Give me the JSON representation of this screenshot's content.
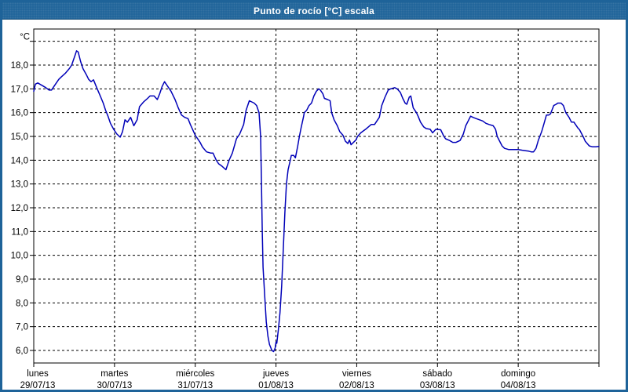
{
  "window": {
    "title": "Punto de rocío [°C] escala"
  },
  "chart": {
    "unit_label": "°C",
    "y_tick_labels": [
      "6,0",
      "7,0",
      "8,0",
      "9,0",
      "10,0",
      "11,0",
      "12,0",
      "13,0",
      "14,0",
      "15,0",
      "16,0",
      "17,0",
      "18,0"
    ],
    "x_labels": [
      {
        "day": "lunes",
        "date": "29/07/13"
      },
      {
        "day": "martes",
        "date": "30/07/13"
      },
      {
        "day": "miércoles",
        "date": "31/07/13"
      },
      {
        "day": "jueves",
        "date": "01/08/13"
      },
      {
        "day": "viernes",
        "date": "02/08/13"
      },
      {
        "day": "sábado",
        "date": "03/08/13"
      },
      {
        "day": "domingo",
        "date": "04/08/13"
      }
    ],
    "colors": {
      "frame_blue": "#1e6399",
      "frame_edge": "#123f63",
      "title_text": "#ffffff",
      "line": "#0000b8",
      "grid": "#000000",
      "plot_background": "#ffffff"
    }
  },
  "chart_data": {
    "type": "line",
    "title": "Punto de rocío [°C] escala",
    "ylabel": "°C",
    "xlabel": "",
    "grid": true,
    "legend": false,
    "ylim": [
      5.5,
      19.5
    ],
    "y_ticks": [
      6,
      7,
      8,
      9,
      10,
      11,
      12,
      13,
      14,
      15,
      16,
      17,
      18
    ],
    "y_grid_max": 19,
    "x_days": 7,
    "x_categories": [
      "lunes 29/07/13",
      "martes 30/07/13",
      "miércoles 31/07/13",
      "jueves 01/08/13",
      "viernes 02/08/13",
      "sábado 03/08/13",
      "domingo 04/08/13"
    ],
    "series": [
      {
        "name": "Punto de rocío [°C]",
        "color": "#0000b8",
        "x_unit": "days_from_monday_start",
        "points": [
          [
            0.0,
            16.9
          ],
          [
            0.02,
            17.2
          ],
          [
            0.05,
            17.25
          ],
          [
            0.1,
            17.15
          ],
          [
            0.15,
            17.05
          ],
          [
            0.19,
            16.95
          ],
          [
            0.22,
            16.95
          ],
          [
            0.26,
            17.15
          ],
          [
            0.31,
            17.4
          ],
          [
            0.34,
            17.5
          ],
          [
            0.39,
            17.65
          ],
          [
            0.44,
            17.85
          ],
          [
            0.47,
            18.0
          ],
          [
            0.51,
            18.4
          ],
          [
            0.53,
            18.6
          ],
          [
            0.55,
            18.55
          ],
          [
            0.58,
            18.15
          ],
          [
            0.61,
            17.85
          ],
          [
            0.65,
            17.6
          ],
          [
            0.68,
            17.4
          ],
          [
            0.71,
            17.3
          ],
          [
            0.74,
            17.38
          ],
          [
            0.78,
            17.05
          ],
          [
            0.83,
            16.65
          ],
          [
            0.86,
            16.4
          ],
          [
            0.89,
            16.1
          ],
          [
            0.92,
            15.85
          ],
          [
            0.95,
            15.55
          ],
          [
            0.99,
            15.3
          ],
          [
            1.03,
            15.1
          ],
          [
            1.07,
            14.97
          ],
          [
            1.1,
            15.2
          ],
          [
            1.13,
            15.7
          ],
          [
            1.16,
            15.6
          ],
          [
            1.2,
            15.8
          ],
          [
            1.24,
            15.45
          ],
          [
            1.28,
            15.7
          ],
          [
            1.31,
            16.25
          ],
          [
            1.36,
            16.45
          ],
          [
            1.41,
            16.6
          ],
          [
            1.44,
            16.7
          ],
          [
            1.49,
            16.7
          ],
          [
            1.53,
            16.55
          ],
          [
            1.56,
            16.8
          ],
          [
            1.59,
            17.1
          ],
          [
            1.62,
            17.3
          ],
          [
            1.65,
            17.15
          ],
          [
            1.7,
            16.9
          ],
          [
            1.75,
            16.55
          ],
          [
            1.79,
            16.2
          ],
          [
            1.83,
            15.9
          ],
          [
            1.87,
            15.8
          ],
          [
            1.91,
            15.75
          ],
          [
            1.94,
            15.5
          ],
          [
            2.0,
            15.05
          ],
          [
            2.06,
            14.75
          ],
          [
            2.09,
            14.55
          ],
          [
            2.14,
            14.35
          ],
          [
            2.19,
            14.3
          ],
          [
            2.22,
            14.3
          ],
          [
            2.26,
            14.0
          ],
          [
            2.29,
            13.85
          ],
          [
            2.33,
            13.75
          ],
          [
            2.38,
            13.6
          ],
          [
            2.42,
            14.0
          ],
          [
            2.46,
            14.3
          ],
          [
            2.51,
            14.9
          ],
          [
            2.55,
            15.1
          ],
          [
            2.6,
            15.5
          ],
          [
            2.63,
            16.1
          ],
          [
            2.67,
            16.5
          ],
          [
            2.7,
            16.45
          ],
          [
            2.73,
            16.4
          ],
          [
            2.76,
            16.3
          ],
          [
            2.79,
            16.0
          ],
          [
            2.81,
            15.0
          ],
          [
            2.82,
            13.0
          ],
          [
            2.83,
            11.0
          ],
          [
            2.84,
            9.5
          ],
          [
            2.86,
            8.3
          ],
          [
            2.88,
            7.2
          ],
          [
            2.9,
            6.6
          ],
          [
            2.92,
            6.25
          ],
          [
            2.95,
            6.0
          ],
          [
            2.97,
            5.95
          ],
          [
            2.99,
            6.1
          ],
          [
            3.0,
            6.35
          ],
          [
            3.01,
            6.3
          ],
          [
            3.03,
            6.9
          ],
          [
            3.05,
            7.6
          ],
          [
            3.07,
            8.7
          ],
          [
            3.09,
            10.2
          ],
          [
            3.11,
            11.8
          ],
          [
            3.13,
            13.0
          ],
          [
            3.15,
            13.6
          ],
          [
            3.17,
            13.9
          ],
          [
            3.19,
            14.2
          ],
          [
            3.22,
            14.2
          ],
          [
            3.24,
            14.1
          ],
          [
            3.27,
            14.6
          ],
          [
            3.29,
            15.0
          ],
          [
            3.31,
            15.35
          ],
          [
            3.34,
            15.8
          ],
          [
            3.35,
            16.0
          ],
          [
            3.38,
            16.1
          ],
          [
            3.41,
            16.3
          ],
          [
            3.44,
            16.4
          ],
          [
            3.47,
            16.7
          ],
          [
            3.5,
            16.9
          ],
          [
            3.53,
            17.0
          ],
          [
            3.55,
            16.95
          ],
          [
            3.58,
            16.8
          ],
          [
            3.6,
            16.6
          ],
          [
            3.64,
            16.55
          ],
          [
            3.67,
            16.5
          ],
          [
            3.69,
            16.0
          ],
          [
            3.72,
            15.7
          ],
          [
            3.76,
            15.45
          ],
          [
            3.79,
            15.2
          ],
          [
            3.83,
            15.05
          ],
          [
            3.86,
            14.8
          ],
          [
            3.89,
            14.7
          ],
          [
            3.91,
            14.85
          ],
          [
            3.93,
            14.65
          ],
          [
            3.96,
            14.75
          ],
          [
            3.99,
            14.85
          ],
          [
            4.01,
            15.0
          ],
          [
            4.05,
            15.15
          ],
          [
            4.11,
            15.3
          ],
          [
            4.18,
            15.5
          ],
          [
            4.22,
            15.5
          ],
          [
            4.28,
            15.8
          ],
          [
            4.31,
            16.3
          ],
          [
            4.35,
            16.65
          ],
          [
            4.39,
            16.95
          ],
          [
            4.42,
            17.0
          ],
          [
            4.47,
            17.05
          ],
          [
            4.5,
            17.0
          ],
          [
            4.54,
            16.85
          ],
          [
            4.57,
            16.6
          ],
          [
            4.6,
            16.4
          ],
          [
            4.62,
            16.35
          ],
          [
            4.65,
            16.65
          ],
          [
            4.67,
            16.7
          ],
          [
            4.7,
            16.2
          ],
          [
            4.74,
            16.0
          ],
          [
            4.76,
            15.85
          ],
          [
            4.79,
            15.6
          ],
          [
            4.83,
            15.4
          ],
          [
            4.86,
            15.33
          ],
          [
            4.91,
            15.3
          ],
          [
            4.94,
            15.15
          ],
          [
            4.98,
            15.3
          ],
          [
            5.04,
            15.28
          ],
          [
            5.08,
            15.0
          ],
          [
            5.1,
            14.9
          ],
          [
            5.15,
            14.83
          ],
          [
            5.19,
            14.75
          ],
          [
            5.23,
            14.75
          ],
          [
            5.28,
            14.83
          ],
          [
            5.32,
            15.1
          ],
          [
            5.35,
            15.45
          ],
          [
            5.38,
            15.65
          ],
          [
            5.41,
            15.85
          ],
          [
            5.44,
            15.8
          ],
          [
            5.48,
            15.75
          ],
          [
            5.52,
            15.7
          ],
          [
            5.56,
            15.65
          ],
          [
            5.6,
            15.55
          ],
          [
            5.64,
            15.5
          ],
          [
            5.69,
            15.45
          ],
          [
            5.72,
            15.3
          ],
          [
            5.74,
            15.0
          ],
          [
            5.77,
            14.8
          ],
          [
            5.8,
            14.6
          ],
          [
            5.83,
            14.5
          ],
          [
            5.88,
            14.45
          ],
          [
            5.93,
            14.45
          ],
          [
            6.0,
            14.45
          ],
          [
            6.05,
            14.42
          ],
          [
            6.09,
            14.4
          ],
          [
            6.13,
            14.38
          ],
          [
            6.16,
            14.35
          ],
          [
            6.19,
            14.35
          ],
          [
            6.22,
            14.5
          ],
          [
            6.25,
            14.85
          ],
          [
            6.29,
            15.2
          ],
          [
            6.32,
            15.55
          ],
          [
            6.35,
            15.9
          ],
          [
            6.38,
            15.9
          ],
          [
            6.4,
            15.95
          ],
          [
            6.44,
            16.3
          ],
          [
            6.47,
            16.35
          ],
          [
            6.49,
            16.4
          ],
          [
            6.53,
            16.4
          ],
          [
            6.56,
            16.3
          ],
          [
            6.59,
            16.0
          ],
          [
            6.63,
            15.8
          ],
          [
            6.66,
            15.6
          ],
          [
            6.69,
            15.6
          ],
          [
            6.74,
            15.35
          ],
          [
            6.76,
            15.28
          ],
          [
            6.81,
            14.95
          ],
          [
            6.83,
            14.8
          ],
          [
            6.88,
            14.6
          ],
          [
            6.92,
            14.56
          ],
          [
            6.96,
            14.56
          ],
          [
            7.0,
            14.58
          ]
        ]
      }
    ]
  }
}
